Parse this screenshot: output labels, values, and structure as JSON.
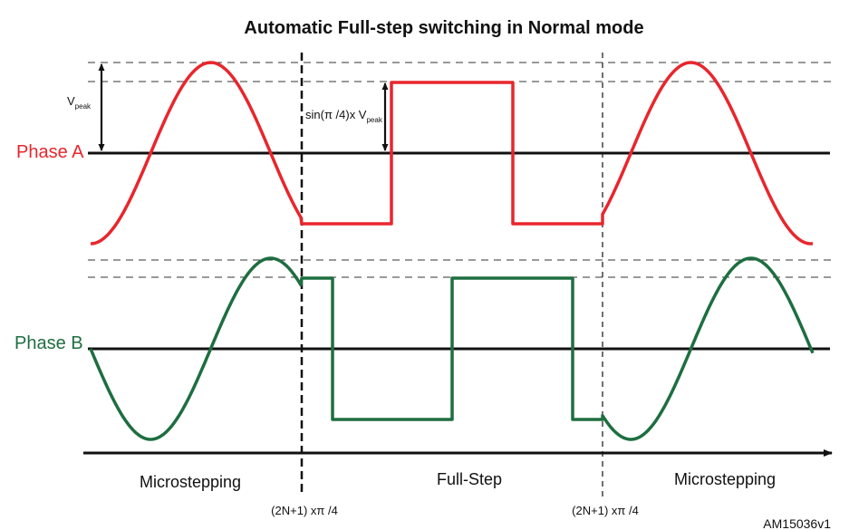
{
  "title": "Automatic Full-step switching in Normal mode",
  "phase_a": {
    "label": "Phase A",
    "color": "#e8262d"
  },
  "phase_b": {
    "label": "Phase B",
    "color": "#1e6e40"
  },
  "annotations": {
    "vpeak_base": "V",
    "vpeak_sub": "peak",
    "sin_prefix": "sin(π /4)x V",
    "sin_sub": "peak"
  },
  "regions": {
    "left": "Microstepping",
    "middle": "Full-Step",
    "right": "Microstepping"
  },
  "switch_points": {
    "left": "(2N+1) xπ /4",
    "right": "(2N+1) xπ /4"
  },
  "reference_code": "AM15036v1"
}
